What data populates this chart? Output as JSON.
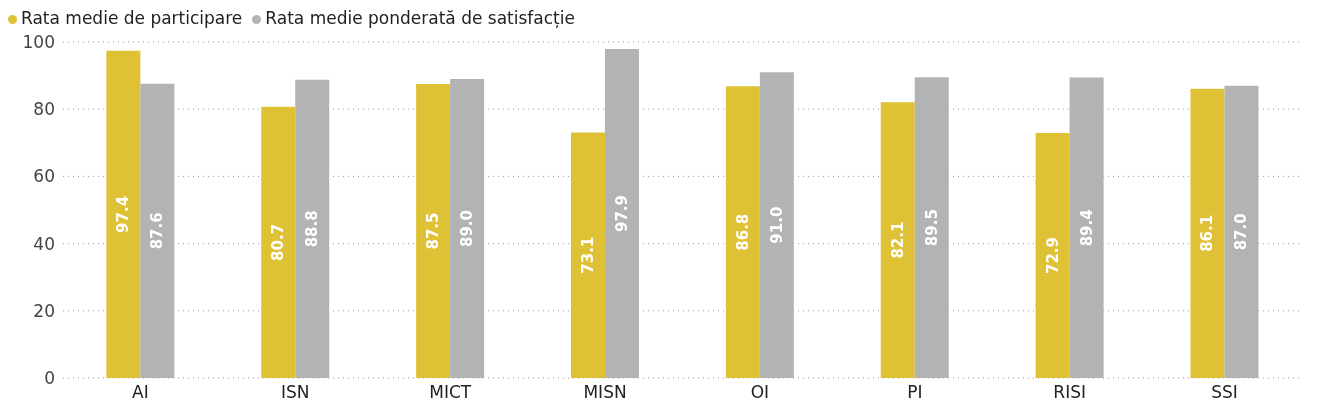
{
  "chart_data": {
    "type": "bar",
    "categories": [
      "AI",
      "ISN",
      "MICT",
      "MISN",
      "OI",
      "PI",
      "RISI",
      "SSI"
    ],
    "series": [
      {
        "name": "Rata medie de participare",
        "color": "#dfc135",
        "values": [
          97.4,
          80.7,
          87.5,
          73.1,
          86.8,
          82.1,
          72.9,
          86.1
        ],
        "value_labels": [
          "97.4",
          "80.7",
          "87.5",
          "73.1",
          "86.8",
          "82.1",
          "72.9",
          "86.1"
        ]
      },
      {
        "name": "Rata medie ponderată de satisfacție",
        "color": "#b3b3b3",
        "values": [
          87.6,
          88.8,
          89.0,
          97.9,
          91.0,
          89.5,
          89.4,
          87.0
        ],
        "value_labels": [
          "87.6",
          "88.8",
          "89.0",
          "97.9",
          "91.0",
          "89.5",
          "89.4",
          "87.0"
        ]
      }
    ],
    "ylim": [
      0,
      100
    ],
    "yticks": [
      0,
      20,
      40,
      60,
      80,
      100
    ],
    "grid": "y",
    "legend": "top left"
  }
}
